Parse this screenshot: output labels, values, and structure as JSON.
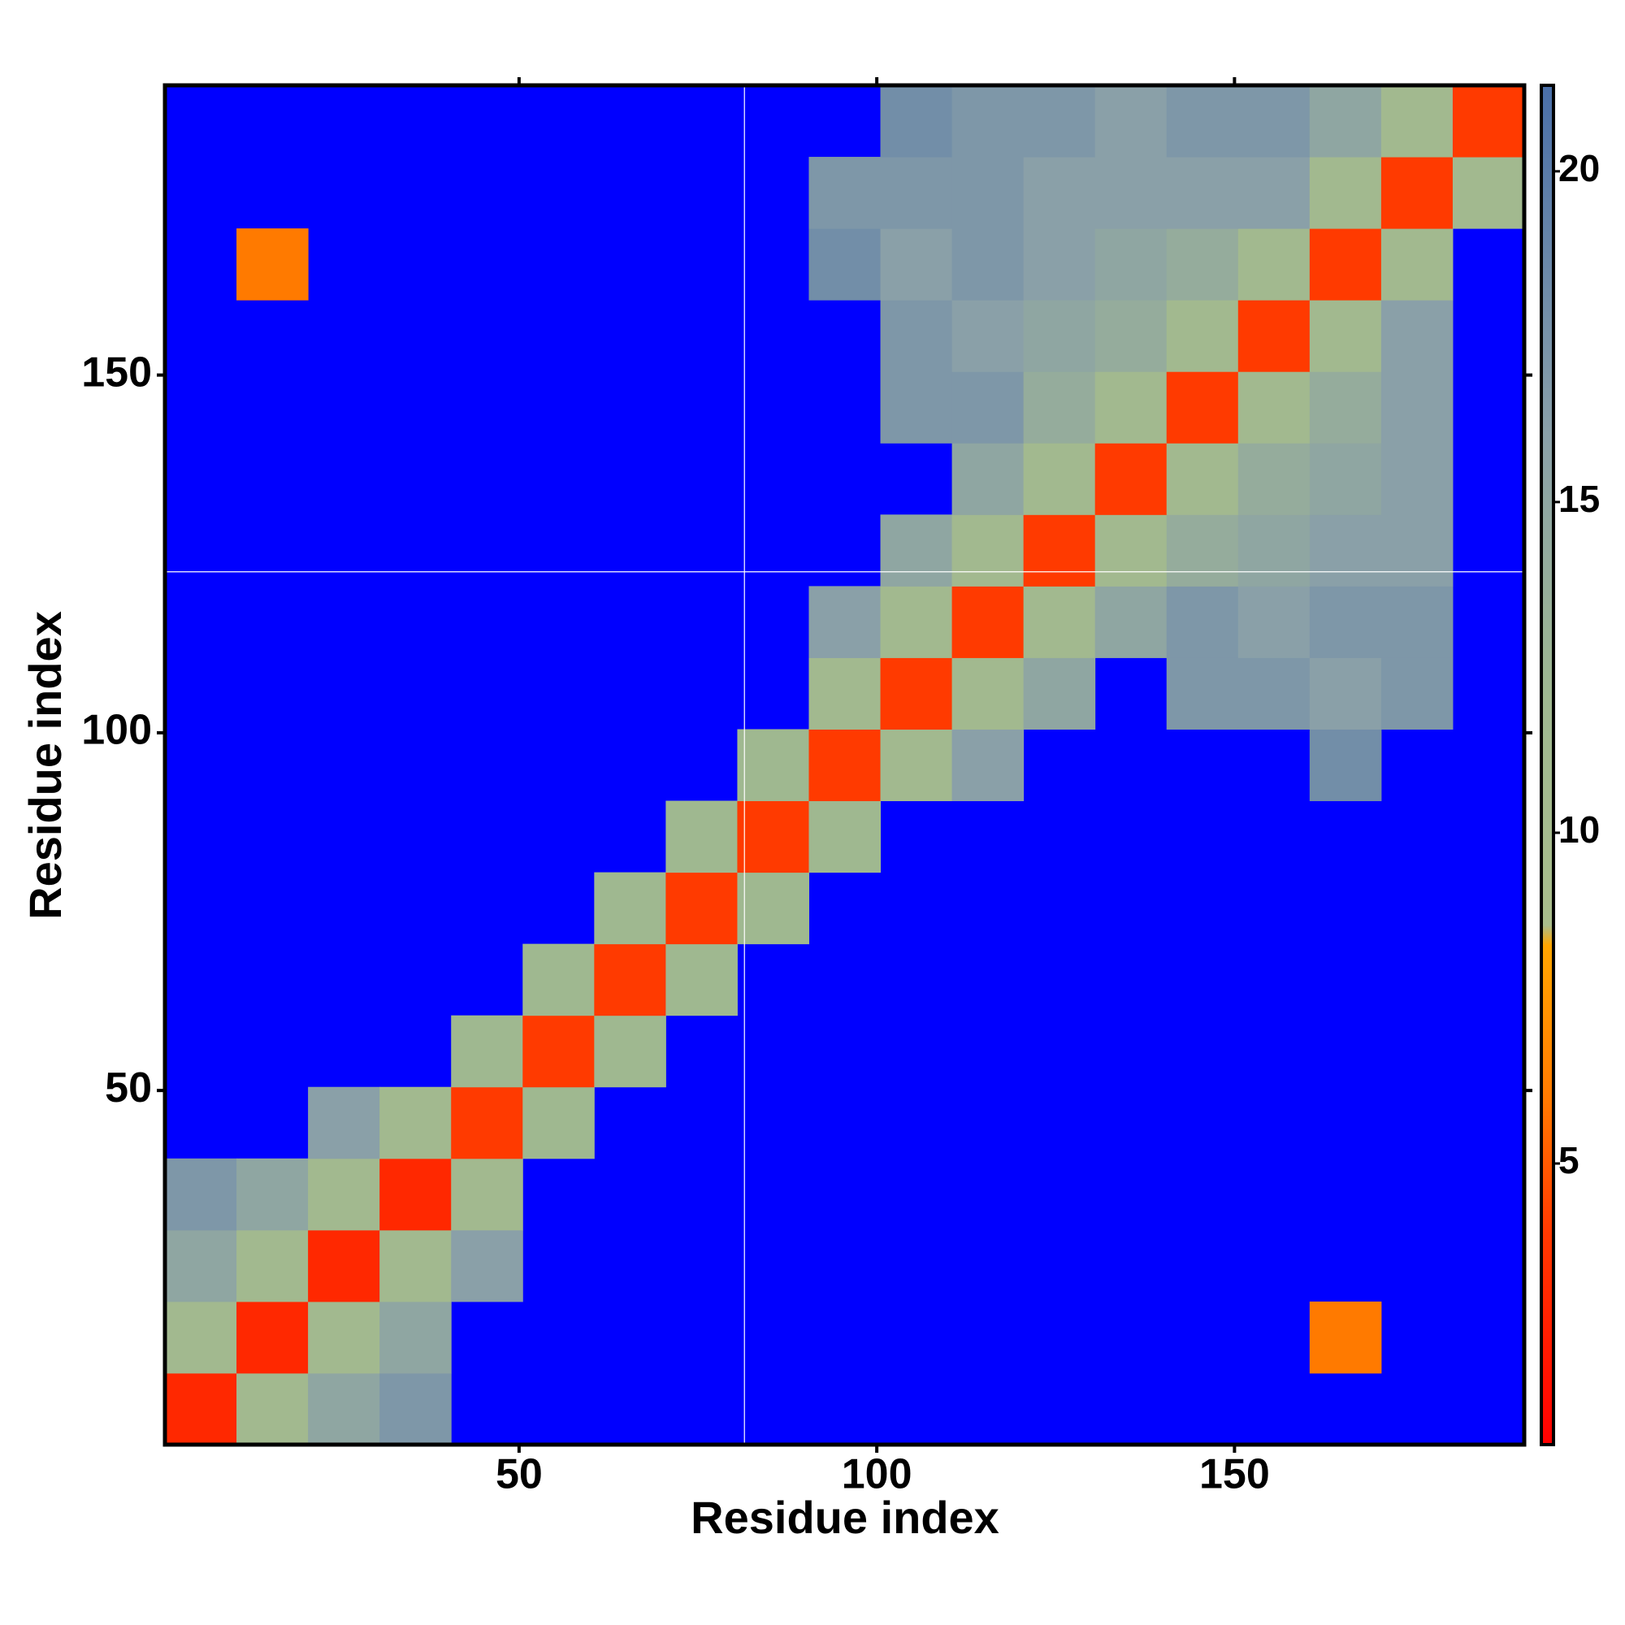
{
  "chart_data": {
    "type": "heatmap",
    "xlabel": "Residue index",
    "ylabel": "Residue index",
    "bins": [
      0.5,
      10.5,
      20.5,
      30.5,
      40.5,
      50.5,
      60.5,
      70.5,
      80.5,
      90.5,
      100.5,
      110.5,
      120.5,
      130.5,
      140.5,
      150.5,
      160.5,
      170.5,
      180.5,
      190.5
    ],
    "z": [
      [
        3,
        11,
        15,
        17,
        null,
        null,
        null,
        null,
        null,
        null,
        null,
        null,
        null,
        null,
        null,
        null,
        null,
        null,
        null
      ],
      [
        11,
        3,
        11,
        15,
        null,
        null,
        null,
        null,
        null,
        null,
        null,
        null,
        null,
        null,
        null,
        null,
        6,
        null,
        null
      ],
      [
        15,
        11,
        3,
        11,
        16,
        null,
        null,
        null,
        null,
        null,
        null,
        null,
        null,
        null,
        null,
        null,
        null,
        null,
        null
      ],
      [
        17,
        15,
        11,
        3,
        11,
        null,
        null,
        null,
        null,
        null,
        null,
        null,
        null,
        null,
        null,
        null,
        null,
        null,
        null
      ],
      [
        null,
        null,
        16,
        11,
        4,
        12,
        null,
        null,
        null,
        null,
        null,
        null,
        null,
        null,
        null,
        null,
        null,
        null,
        null
      ],
      [
        null,
        null,
        null,
        null,
        12,
        4,
        12,
        null,
        null,
        null,
        null,
        null,
        null,
        null,
        null,
        null,
        null,
        null,
        null
      ],
      [
        null,
        null,
        null,
        null,
        null,
        12,
        4,
        12,
        null,
        null,
        null,
        null,
        null,
        null,
        null,
        null,
        null,
        null,
        null
      ],
      [
        null,
        null,
        null,
        null,
        null,
        null,
        12,
        4,
        12,
        null,
        null,
        null,
        null,
        null,
        null,
        null,
        null,
        null,
        null
      ],
      [
        null,
        null,
        null,
        null,
        null,
        null,
        null,
        12,
        4,
        12,
        null,
        null,
        null,
        null,
        null,
        null,
        null,
        null,
        null
      ],
      [
        null,
        null,
        null,
        null,
        null,
        null,
        null,
        null,
        12,
        4,
        11,
        16,
        null,
        null,
        null,
        null,
        18,
        null,
        null
      ],
      [
        null,
        null,
        null,
        null,
        null,
        null,
        null,
        null,
        null,
        11,
        4,
        11,
        15,
        null,
        17,
        17,
        16,
        17,
        null
      ],
      [
        null,
        null,
        null,
        null,
        null,
        null,
        null,
        null,
        null,
        16,
        11,
        4,
        11,
        15,
        17,
        16,
        17,
        17,
        null
      ],
      [
        null,
        null,
        null,
        null,
        null,
        null,
        null,
        null,
        null,
        null,
        15,
        11,
        4,
        11,
        14,
        15,
        16,
        16,
        null
      ],
      [
        null,
        null,
        null,
        null,
        null,
        null,
        null,
        null,
        null,
        null,
        null,
        15,
        11,
        4,
        11,
        14,
        15,
        16,
        null
      ],
      [
        null,
        null,
        null,
        null,
        null,
        null,
        null,
        null,
        null,
        null,
        17,
        17,
        14,
        11,
        4,
        11,
        14,
        16,
        null
      ],
      [
        null,
        null,
        null,
        null,
        null,
        null,
        null,
        null,
        null,
        null,
        17,
        16,
        15,
        14,
        11,
        4,
        11,
        16,
        null
      ],
      [
        null,
        6,
        null,
        null,
        null,
        null,
        null,
        null,
        null,
        18,
        16,
        17,
        16,
        15,
        14,
        11,
        4,
        11,
        null
      ],
      [
        null,
        null,
        null,
        null,
        null,
        null,
        null,
        null,
        null,
        17,
        17,
        17,
        16,
        16,
        16,
        16,
        11,
        4,
        11
      ],
      [
        null,
        null,
        null,
        null,
        null,
        null,
        null,
        null,
        null,
        null,
        18,
        17,
        17,
        16,
        17,
        17,
        15,
        11,
        4
      ]
    ],
    "xlim": [
      0.5,
      190.5
    ],
    "ylim": [
      0.5,
      190.5
    ],
    "xticks": [
      50,
      100,
      150
    ],
    "yticks": [
      50,
      100,
      150
    ],
    "clim": [
      0.75,
      21.3
    ],
    "cticks": [
      5,
      10,
      15,
      20
    ],
    "colorscale": [
      [
        0.75,
        "#ff0000"
      ],
      [
        4,
        "#ff3a00"
      ],
      [
        6,
        "#ff7a00"
      ],
      [
        8.3,
        "#ffa500"
      ],
      [
        8.6,
        "#a9bd8c"
      ],
      [
        12,
        "#9fb890"
      ],
      [
        16,
        "#8aa0a8"
      ],
      [
        21.3,
        "#4a6fa8"
      ]
    ],
    "null_color": "#0000ff",
    "vlines": [
      81.5
    ],
    "hlines": [
      122.5
    ]
  }
}
